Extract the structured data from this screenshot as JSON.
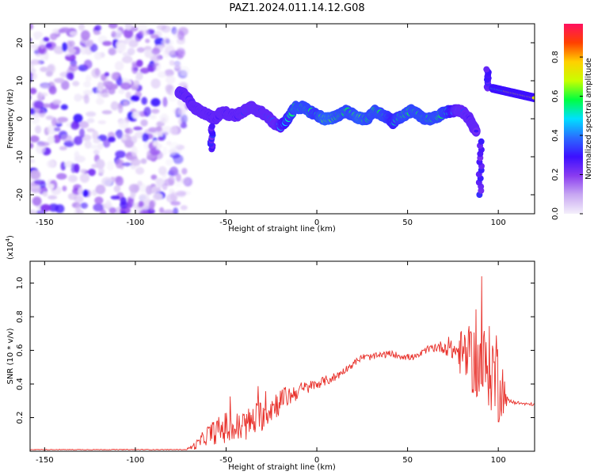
{
  "title": "PAZ1.2024.011.14.12.G08",
  "chart_data": [
    {
      "type": "heatmap",
      "xlabel": "Height of straight line (km)",
      "ylabel": "Frequency (Hz)",
      "xlim": [
        -158,
        120
      ],
      "ylim": [
        -25,
        25
      ],
      "xticks": [
        -150,
        -100,
        -50,
        0,
        50,
        100
      ],
      "yticks": [
        -20,
        -10,
        0,
        10,
        20
      ],
      "colorbar": {
        "label": "Normalized spectral amplitude",
        "range": [
          0.0,
          0.97
        ],
        "ticks": [
          0.0,
          0.2,
          0.4,
          0.6,
          0.8
        ],
        "colormap": [
          "#f4f0fb",
          "#c8a8f2",
          "#8a3cf0",
          "#3c0fff",
          "#2a6cff",
          "#00e0ff",
          "#00ff40",
          "#c8ff00",
          "#ffd000",
          "#ff4000",
          "#ff1060"
        ]
      },
      "noise_region": {
        "x": [
          -158,
          -75
        ],
        "freq": [
          -25,
          25
        ]
      },
      "ridge": {
        "x": [
          -76,
          -72,
          -68,
          -64,
          -60,
          -56,
          -52,
          -48,
          -44,
          -40,
          -36,
          -32,
          -28,
          -24,
          -20,
          -16,
          -12,
          -8,
          -4,
          0,
          4,
          8,
          12,
          16,
          20,
          24,
          28,
          32,
          36,
          40,
          42,
          44,
          48,
          52,
          56,
          60,
          64,
          68,
          72,
          76,
          80,
          84,
          86,
          88
        ],
        "freq": [
          7,
          6,
          3,
          2,
          1,
          0,
          2,
          1,
          1,
          2,
          3,
          2,
          1,
          -1,
          -2,
          0,
          3,
          3,
          2,
          1,
          0,
          0,
          1,
          2,
          1,
          0,
          0,
          2,
          1,
          0,
          -1,
          0,
          1,
          2,
          1,
          0,
          0,
          1,
          2,
          2,
          2,
          0,
          -2,
          -3
        ],
        "amp": [
          0.45,
          0.4,
          0.35,
          0.35,
          0.35,
          0.4,
          0.35,
          0.4,
          0.4,
          0.45,
          0.5,
          0.45,
          0.45,
          0.5,
          0.6,
          0.7,
          0.8,
          0.8,
          0.8,
          0.75,
          0.85,
          0.85,
          0.8,
          0.8,
          0.8,
          0.85,
          0.8,
          0.8,
          0.8,
          0.75,
          0.7,
          0.75,
          0.8,
          0.8,
          0.8,
          0.8,
          0.8,
          0.8,
          0.75,
          0.6,
          0.5,
          0.4,
          0.35,
          0.3
        ]
      },
      "spikes": [
        {
          "x": -58,
          "freq": [
            -8,
            -2
          ]
        },
        {
          "x": 90,
          "freq": [
            -20,
            -6
          ]
        },
        {
          "x": 94,
          "freq": [
            8,
            13
          ]
        }
      ],
      "segment_after": {
        "x": [
          97,
          120
        ],
        "freq": [
          5,
          10
        ],
        "amp": 0.75
      }
    },
    {
      "type": "line",
      "xlabel": "Height of straight line (km)",
      "ylabel": "SNR (10 * v/v)",
      "yscale_label": "(x10",
      "yscale_exp": "4",
      "xlim": [
        -158,
        120
      ],
      "ylim": [
        0.0,
        1.13
      ],
      "xticks": [
        -150,
        -100,
        -50,
        0,
        50,
        100
      ],
      "yticks": [
        0.2,
        0.4,
        0.6,
        0.8,
        1.0
      ],
      "series_color": "#e8302a",
      "series": [
        {
          "x": [
            -158,
            -140,
            -120,
            -100,
            -80,
            -72,
            -66,
            -60,
            -55,
            -50,
            -45,
            -40,
            -35,
            -30,
            -25,
            -20,
            -15,
            -10,
            -5,
            0,
            5,
            10,
            15,
            20,
            25,
            30,
            35,
            40,
            45,
            50,
            55,
            60,
            65,
            70,
            75,
            80,
            85,
            90,
            95,
            100,
            105,
            110,
            115,
            120
          ],
          "y": [
            0.01,
            0.01,
            0.01,
            0.01,
            0.01,
            0.01,
            0.04,
            0.1,
            0.12,
            0.14,
            0.13,
            0.15,
            0.18,
            0.22,
            0.26,
            0.3,
            0.33,
            0.36,
            0.38,
            0.4,
            0.42,
            0.44,
            0.48,
            0.52,
            0.56,
            0.56,
            0.57,
            0.58,
            0.57,
            0.56,
            0.56,
            0.6,
            0.62,
            0.62,
            0.6,
            0.58,
            0.55,
            0.5,
            0.5,
            0.45,
            0.3,
            0.29,
            0.28,
            0.28
          ],
          "noise": [
            0.002,
            0.002,
            0.002,
            0.002,
            0.002,
            0.002,
            0.03,
            0.06,
            0.08,
            0.1,
            0.1,
            0.1,
            0.1,
            0.1,
            0.09,
            0.08,
            0.06,
            0.05,
            0.04,
            0.03,
            0.03,
            0.03,
            0.02,
            0.02,
            0.02,
            0.02,
            0.02,
            0.02,
            0.02,
            0.02,
            0.02,
            0.02,
            0.03,
            0.04,
            0.06,
            0.15,
            0.2,
            0.25,
            0.25,
            0.3,
            0.02,
            0.01,
            0.01,
            0.01
          ]
        }
      ]
    }
  ]
}
